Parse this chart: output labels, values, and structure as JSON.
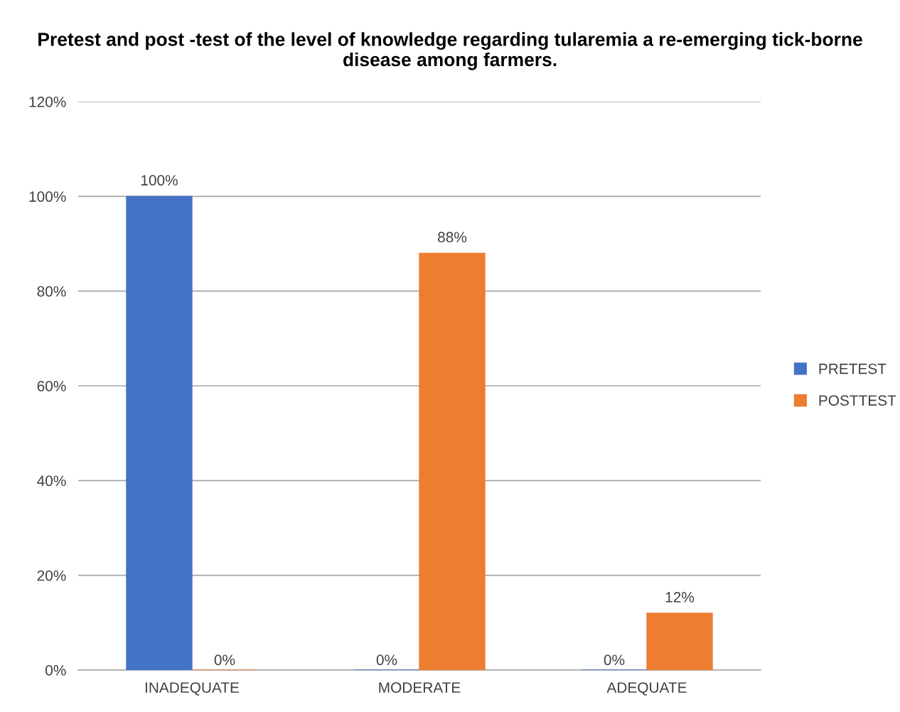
{
  "chart_data": {
    "type": "bar",
    "title": "Pretest and post -test of the level of knowledge regarding tularemia a re-emerging tick-borne disease among farmers.",
    "categories": [
      "INADEQUATE",
      "MODERATE",
      "ADEQUATE"
    ],
    "series": [
      {
        "name": "PRETEST",
        "color": "#4472c4",
        "values": [
          100,
          0,
          0
        ],
        "value_labels": [
          "100%",
          "0%",
          "0%"
        ]
      },
      {
        "name": "POSTTEST",
        "color": "#ed7d31",
        "values": [
          0,
          88,
          12
        ],
        "value_labels": [
          "0%",
          "88%",
          "12%"
        ]
      }
    ],
    "ylim": [
      0,
      120
    ],
    "yticks": [
      {
        "value": 0,
        "label": "0%"
      },
      {
        "value": 20,
        "label": "20%"
      },
      {
        "value": 40,
        "label": "40%"
      },
      {
        "value": 60,
        "label": "60%"
      },
      {
        "value": 80,
        "label": "80%"
      },
      {
        "value": 100,
        "label": "100%"
      },
      {
        "value": 120,
        "label": "120%"
      }
    ],
    "grid": "y",
    "legend": "right"
  }
}
